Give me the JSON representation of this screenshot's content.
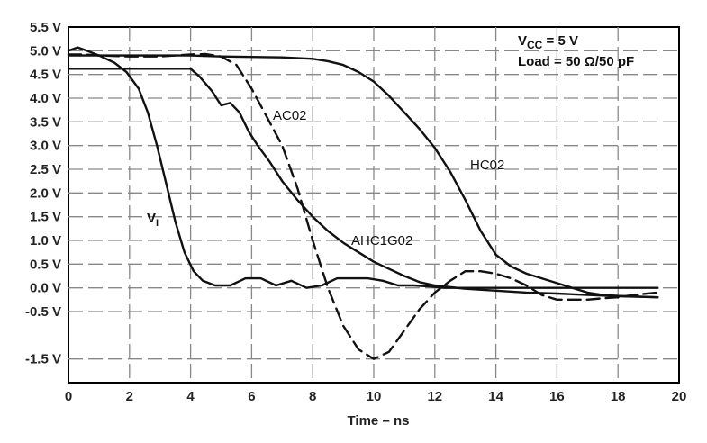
{
  "chart_data": {
    "type": "line",
    "xlabel": "Time – ns",
    "ylabel": "",
    "xlim": [
      0,
      20
    ],
    "ylim": [
      -2.0,
      5.5
    ],
    "grid": true,
    "x_ticks": [
      "0",
      "2",
      "4",
      "6",
      "8",
      "10",
      "12",
      "14",
      "16",
      "18",
      "20"
    ],
    "y_ticks": [
      "5.5 V",
      "5.0 V",
      "4.5 V",
      "4.0 V",
      "3.5 V",
      "3.0 V",
      "2.5 V",
      "2.0 V",
      "1.5 V",
      "1.0 V",
      "0.5 V",
      "0.0 V",
      "-0.5 V",
      "-1.5 V"
    ],
    "conditions": {
      "vcc_prefix": "V",
      "vcc_subscript": "CC",
      "vcc_suffix": " = 5 V",
      "load": "Load = 50 Ω/50 pF"
    },
    "series": [
      {
        "name": "VI",
        "label_main": "V",
        "label_sub": "I",
        "style": "solid",
        "x": [
          0,
          0.3,
          0.6,
          1.0,
          1.5,
          1.9,
          2.3,
          2.6,
          2.9,
          3.2,
          3.5,
          3.8,
          4.1,
          4.4,
          4.8,
          5.3,
          5.8,
          6.3,
          6.8,
          7.3,
          7.8,
          8.3,
          8.8,
          9.3,
          9.8,
          10.3,
          10.8,
          11.3,
          11.8,
          12.3,
          13,
          14,
          16,
          18,
          19.3
        ],
        "y": [
          5.0,
          5.07,
          5.0,
          4.9,
          4.75,
          4.55,
          4.2,
          3.7,
          3.0,
          2.2,
          1.4,
          0.75,
          0.35,
          0.15,
          0.05,
          0.05,
          0.2,
          0.2,
          0.05,
          0.15,
          0.0,
          0.05,
          0.2,
          0.2,
          0.2,
          0.15,
          0.05,
          0.05,
          0.03,
          0.0,
          0.0,
          0.0,
          0.0,
          0.0,
          0.0
        ]
      },
      {
        "name": "AC02",
        "style": "dashed",
        "x": [
          0,
          0.5,
          1.0,
          2.0,
          3.0,
          4.0,
          4.5,
          5.0,
          5.5,
          6.0,
          6.5,
          7.0,
          7.5,
          8.0,
          8.5,
          9.0,
          9.5,
          10.0,
          10.5,
          11.0,
          11.5,
          12.0,
          12.5,
          13.0,
          13.5,
          14.0,
          14.5,
          15.0,
          15.5,
          16.0,
          16.5,
          17.0,
          17.5,
          18.0,
          18.5,
          19.3
        ],
        "y": [
          4.92,
          4.92,
          4.9,
          4.88,
          4.88,
          4.92,
          4.93,
          4.88,
          4.7,
          4.2,
          3.6,
          3.0,
          2.1,
          1.0,
          0.0,
          -0.8,
          -1.3,
          -1.5,
          -1.35,
          -0.9,
          -0.45,
          -0.1,
          0.15,
          0.35,
          0.35,
          0.3,
          0.2,
          0.05,
          -0.15,
          -0.25,
          -0.25,
          -0.25,
          -0.22,
          -0.2,
          -0.15,
          -0.1
        ]
      },
      {
        "name": "AHC1G02",
        "style": "solid",
        "x": [
          0,
          1,
          2,
          3,
          4,
          4.3,
          4.7,
          5.0,
          5.3,
          5.6,
          5.9,
          6.2,
          6.6,
          7.0,
          7.5,
          8.0,
          8.5,
          9.0,
          9.5,
          10.0,
          10.5,
          11.0,
          11.5,
          12.0,
          13,
          14,
          15,
          16,
          17,
          18,
          19.3
        ],
        "y": [
          4.62,
          4.62,
          4.62,
          4.62,
          4.62,
          4.45,
          4.15,
          3.85,
          3.9,
          3.7,
          3.3,
          3.0,
          2.65,
          2.25,
          1.85,
          1.5,
          1.2,
          0.95,
          0.75,
          0.55,
          0.4,
          0.25,
          0.12,
          0.05,
          -0.02,
          -0.06,
          -0.1,
          -0.12,
          -0.15,
          -0.18,
          -0.2
        ]
      },
      {
        "name": "HC02",
        "style": "solid",
        "x": [
          0,
          2,
          4,
          5,
          6,
          7,
          8,
          8.5,
          9.0,
          9.5,
          10.0,
          10.5,
          11.0,
          11.5,
          12.0,
          12.5,
          13.0,
          13.5,
          14.0,
          14.5,
          15.0,
          15.5,
          16.0,
          16.5,
          17.0,
          17.5,
          18.0,
          19.3
        ],
        "y": [
          4.9,
          4.9,
          4.9,
          4.88,
          4.87,
          4.86,
          4.83,
          4.78,
          4.7,
          4.55,
          4.35,
          4.05,
          3.7,
          3.35,
          2.95,
          2.45,
          1.85,
          1.2,
          0.7,
          0.45,
          0.3,
          0.2,
          0.1,
          0.0,
          -0.1,
          -0.15,
          -0.17,
          -0.2
        ]
      }
    ]
  }
}
